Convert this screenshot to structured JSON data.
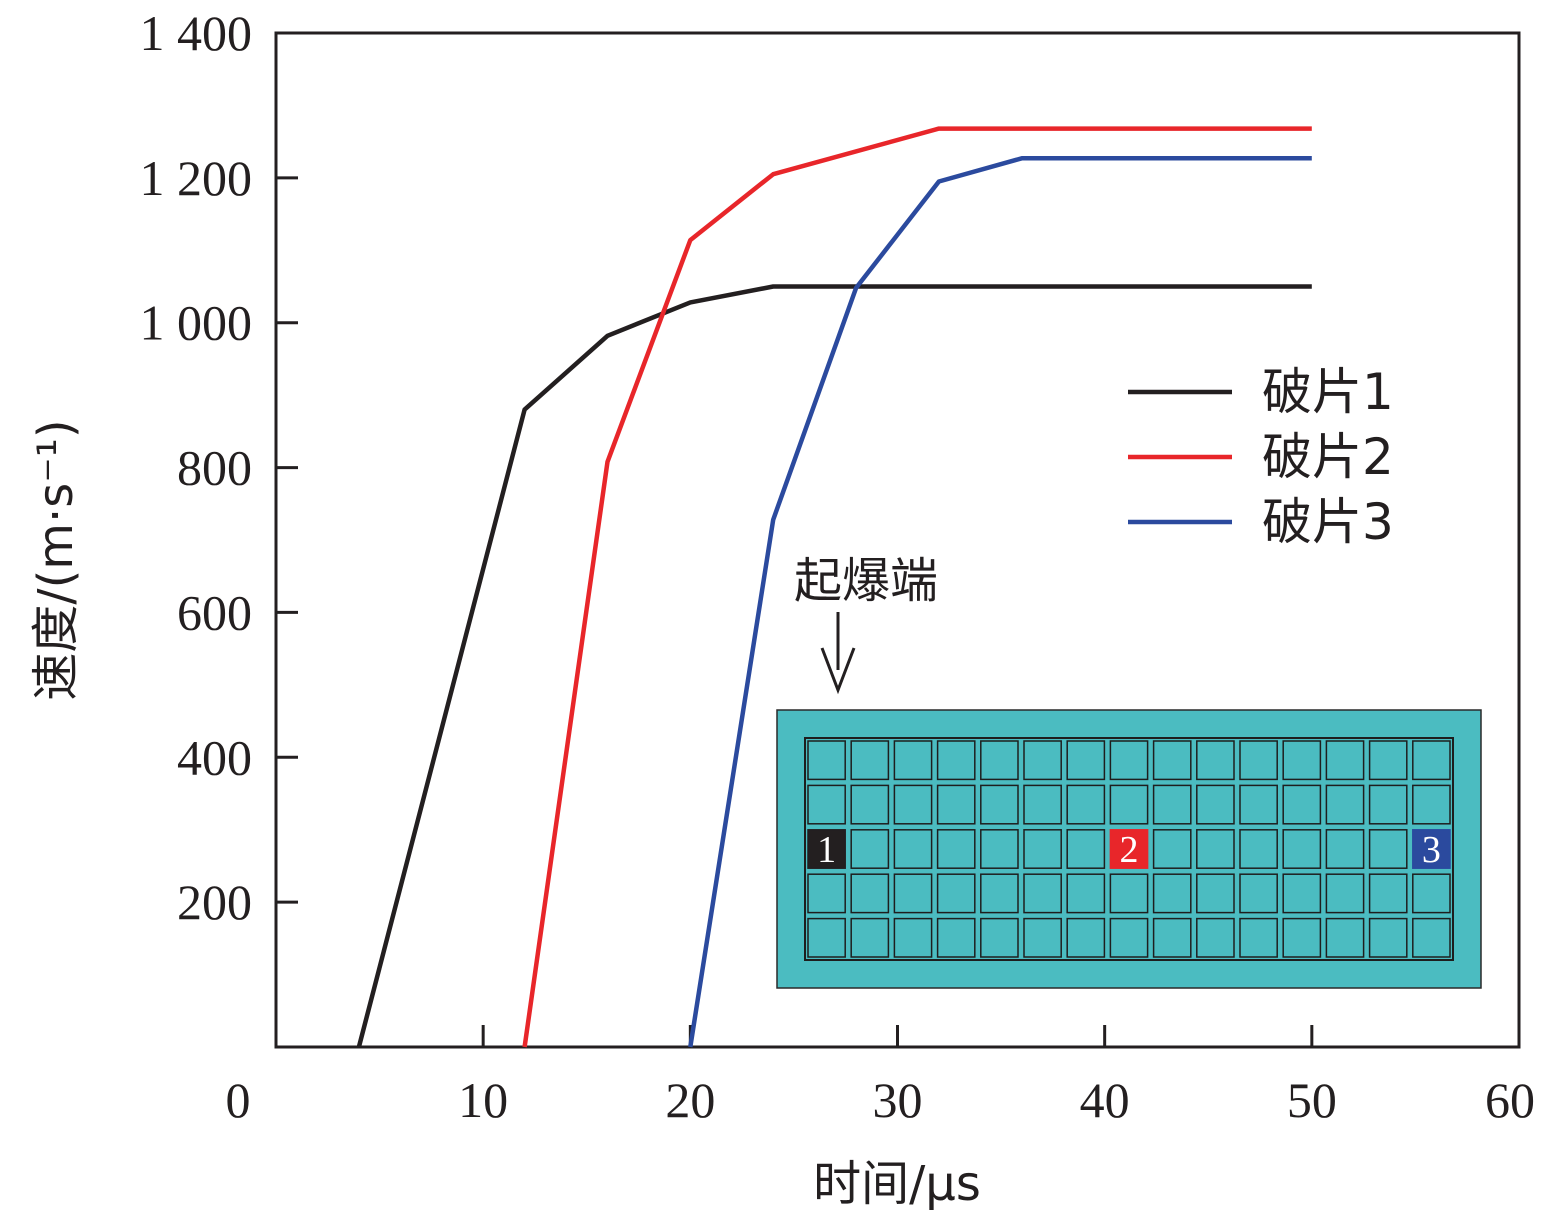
{
  "chart_data": {
    "type": "line",
    "xlabel": "时间/μs",
    "ylabel": "速度/(m·s⁻¹)",
    "xlim": [
      0,
      60
    ],
    "ylim": [
      0,
      1400
    ],
    "x_ticks": [
      0,
      10,
      20,
      30,
      40,
      50,
      60
    ],
    "x_tick_labels": [
      "0",
      "10",
      "20",
      "30",
      "40",
      "50",
      "60"
    ],
    "y_ticks": [
      200,
      400,
      600,
      800,
      1000,
      1200,
      1400
    ],
    "y_tick_labels": [
      "200",
      "400",
      "600",
      "800",
      "1 000",
      "1 200",
      "1 400"
    ],
    "legend_position": "right",
    "series": [
      {
        "name": "破片1",
        "color": "#231f20",
        "x": [
          4,
          12,
          16,
          20,
          24,
          50
        ],
        "y": [
          0,
          880,
          982,
          1028,
          1050,
          1050
        ]
      },
      {
        "name": "破片2",
        "color": "#e8262a",
        "x": [
          12,
          16,
          20,
          24,
          32,
          50
        ],
        "y": [
          0,
          808,
          1114,
          1205,
          1268,
          1268
        ]
      },
      {
        "name": "破片3",
        "color": "#2b4a9e",
        "x": [
          20,
          24,
          28,
          32,
          36,
          50
        ],
        "y": [
          0,
          728,
          1048,
          1195,
          1227,
          1227
        ]
      }
    ],
    "annotation": "起爆端",
    "inset": {
      "rows": 5,
      "cols": 15,
      "fill_color": "#4bbcc1",
      "labeled_cells": [
        {
          "row": 2,
          "col": 0,
          "label": "1",
          "color": "#231f20"
        },
        {
          "row": 2,
          "col": 7,
          "label": "2",
          "color": "#e8262a"
        },
        {
          "row": 2,
          "col": 14,
          "label": "3",
          "color": "#2b4a9e"
        }
      ]
    }
  }
}
